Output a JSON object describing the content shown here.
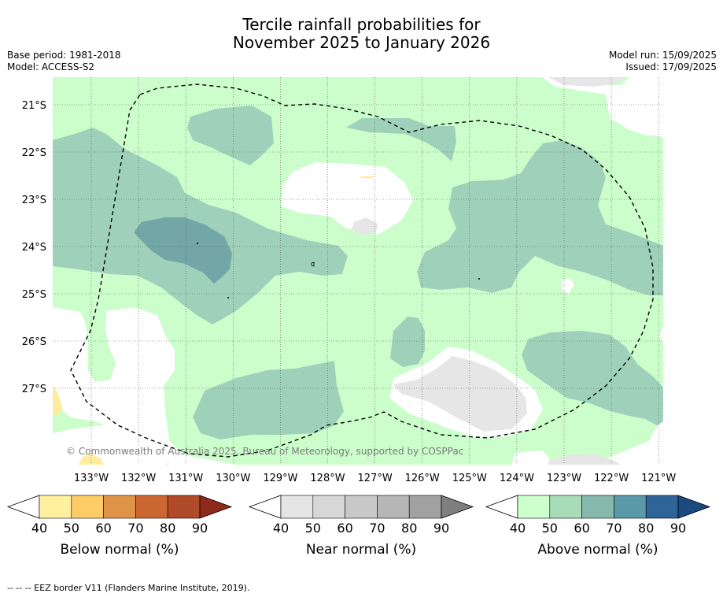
{
  "title": {
    "line1": "Tercile rainfall probabilities for",
    "line2": "November 2025 to January 2026"
  },
  "meta": {
    "base_period": "Base period: 1981-2018",
    "model": "Model: ACCESS-S2",
    "model_run": "Model run: 15/09/2025",
    "issued": "Issued: 17/09/2025"
  },
  "map": {
    "lon_labels": [
      "133°W",
      "132°W",
      "131°W",
      "130°W",
      "129°W",
      "128°W",
      "127°W",
      "126°W",
      "125°W",
      "124°W",
      "123°W",
      "122°W",
      "121°W"
    ],
    "lat_labels": [
      "21°S",
      "22°S",
      "23°S",
      "24°S",
      "25°S",
      "26°S",
      "27°S"
    ],
    "copyright": "© Commonwealth of Australia 2025, Bureau of Meteorology, supported by COSPPac",
    "colors": {
      "above_40": "#ccfecc",
      "above_50": "#9fd1ba",
      "above_60": "#73a6a6",
      "near_40": "#e6e6e6",
      "below_40": "#feed9e",
      "border": "#000000"
    }
  },
  "colorbars": [
    {
      "label": "Below normal (%)",
      "ticks": [
        "40",
        "50",
        "60",
        "70",
        "80",
        "90"
      ],
      "colors": [
        "#fff0a0",
        "#fdcc66",
        "#e0944a",
        "#cc6633",
        "#b04a28",
        "#8e2a1a"
      ]
    },
    {
      "label": "Near normal (%)",
      "ticks": [
        "40",
        "50",
        "60",
        "70",
        "80",
        "90"
      ],
      "colors": [
        "#e5e5e5",
        "#d7d7d7",
        "#c8c8c8",
        "#b6b6b6",
        "#a2a2a2",
        "#7f7f7f"
      ]
    },
    {
      "label": "Above normal (%)",
      "ticks": [
        "40",
        "50",
        "60",
        "70",
        "80",
        "90"
      ],
      "colors": [
        "#ccffcc",
        "#a8dcb8",
        "#86b8ac",
        "#5a9aa8",
        "#2f6498",
        "#1b4a80"
      ]
    }
  ],
  "footnote": "--  --  -- EEZ border V11 (Flanders Marine Institute, 2019)."
}
